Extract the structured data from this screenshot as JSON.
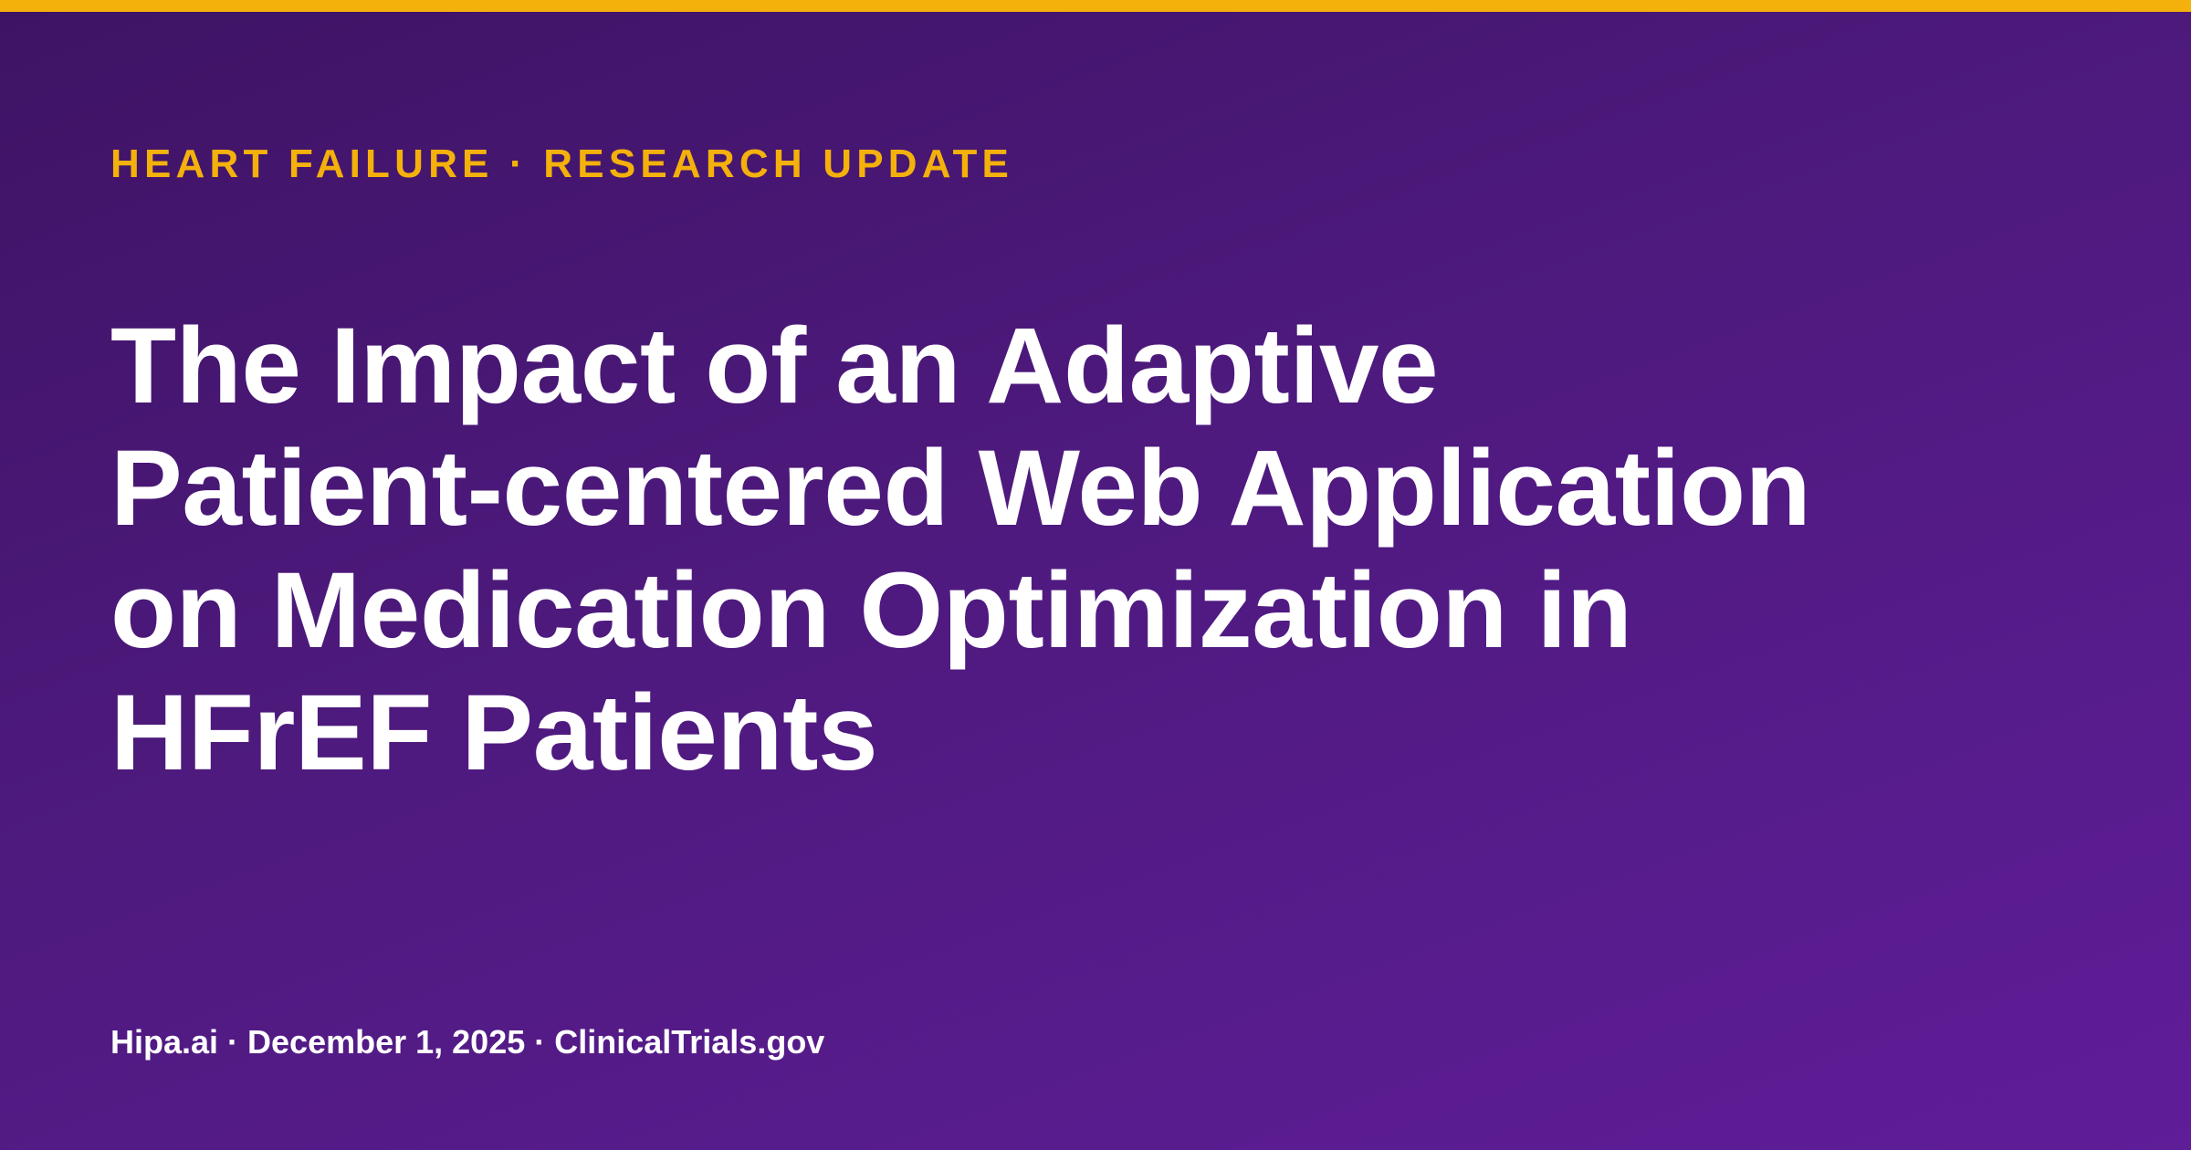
{
  "colors": {
    "accent": "#f4b10b",
    "background_start": "#3e1364",
    "background_end": "#5f1d98",
    "headline": "#ffffff"
  },
  "kicker": "HEART FAILURE · RESEARCH UPDATE",
  "headline": {
    "lines": [
      "The Impact of an Adaptive",
      "Patient-centered Web Application",
      "on Medication Optimization in",
      "HFrEF Patients"
    ]
  },
  "footer": {
    "meta": "Hipa.ai · December 1, 2025 · ClinicalTrials.gov"
  }
}
